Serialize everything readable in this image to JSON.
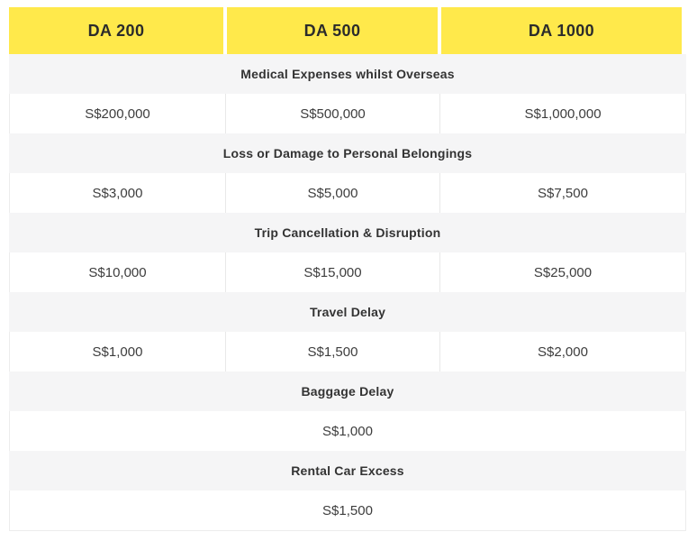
{
  "table": {
    "plans": [
      {
        "label": "DA 200"
      },
      {
        "label": "DA 500"
      },
      {
        "label": "DA 1000"
      }
    ],
    "sections": [
      {
        "category": "Medical Expenses whilst Overseas",
        "values": [
          "S$200,000",
          "S$500,000",
          "S$1,000,000"
        ]
      },
      {
        "category": "Loss or Damage to Personal Belongings",
        "values": [
          "S$3,000",
          "S$5,000",
          "S$7,500"
        ]
      },
      {
        "category": "Trip Cancellation & Disruption",
        "values": [
          "S$10,000",
          "S$15,000",
          "S$25,000"
        ]
      },
      {
        "category": "Travel Delay",
        "values": [
          "S$1,000",
          "S$1,500",
          "S$2,000"
        ]
      },
      {
        "category": "Baggage Delay",
        "values": [
          "S$1,000"
        ]
      },
      {
        "category": "Rental Car Excess",
        "values": [
          "S$1,500"
        ]
      }
    ],
    "colors": {
      "header_bg": "#ffe94b",
      "category_bg": "#f5f5f6",
      "border": "#ececec",
      "divider": "#e8e8e8",
      "header_text": "#2b2b2b",
      "category_text": "#333333",
      "value_text": "#3d3d3d"
    }
  }
}
